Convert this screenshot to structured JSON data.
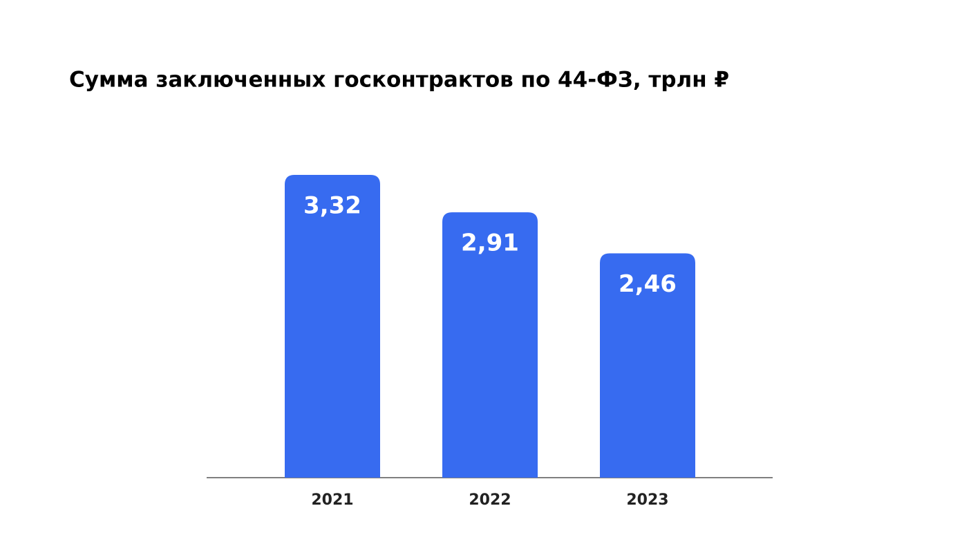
{
  "chart_data": {
    "type": "bar",
    "title": "Сумма заключенных госконтрактов по 44-ФЗ, трлн ₽",
    "categories": [
      "2021",
      "2022",
      "2023"
    ],
    "values": [
      3.32,
      2.91,
      2.46
    ],
    "value_labels": [
      "3,32",
      "2,91",
      "2,46"
    ],
    "color": "#376bf0"
  }
}
